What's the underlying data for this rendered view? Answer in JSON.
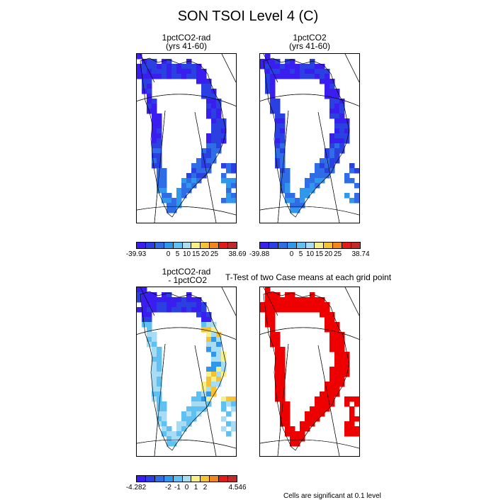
{
  "title": "SON TSOI Level 4 (C)",
  "chart_data": [
    {
      "type": "heatmap",
      "title_line1": "1pctCO2-rad",
      "title_line2": "(yrs 41-60)",
      "colorbar": {
        "colors": [
          "#3a1ef0",
          "#2a40e0",
          "#2f6de6",
          "#2f98ea",
          "#5fc0f2",
          "#a8dcf4",
          "#f7f08a",
          "#f5c232",
          "#f0861e",
          "#e21a18",
          "#c02a2a"
        ],
        "labels": [
          "-39.93",
          "0",
          "5",
          "10",
          "15",
          "20",
          "25",
          "38.69"
        ]
      }
    },
    {
      "type": "heatmap",
      "title_line1": "1pctCO2",
      "title_line2": "(yrs 41-60)",
      "colorbar": {
        "colors": [
          "#3a1ef0",
          "#2a40e0",
          "#2f6de6",
          "#2f98ea",
          "#5fc0f2",
          "#a8dcf4",
          "#f7f08a",
          "#f5c232",
          "#f0861e",
          "#e21a18",
          "#c02a2a"
        ],
        "labels": [
          "-39.88",
          "0",
          "5",
          "10",
          "15",
          "20",
          "25",
          "38.74"
        ]
      }
    },
    {
      "type": "heatmap",
      "title_line1": "1pctCO2-rad",
      "title_line2": " - 1pctCO2",
      "colorbar": {
        "colors": [
          "#3a1ef0",
          "#2a40e0",
          "#2f6de6",
          "#2f98ea",
          "#5fc0f2",
          "#a8dcf4",
          "#f7f08a",
          "#f5c232",
          "#f0861e",
          "#e21a18",
          "#c02a2a"
        ],
        "labels": [
          "-4.282",
          "-2",
          "-1",
          "0",
          "1",
          "2",
          "4.546"
        ]
      }
    },
    {
      "type": "heatmap",
      "title": "T-Test of two Case means at each grid point",
      "footnote": "Cells are significant at 0.1 level",
      "significant_color": "#ee0000"
    }
  ]
}
